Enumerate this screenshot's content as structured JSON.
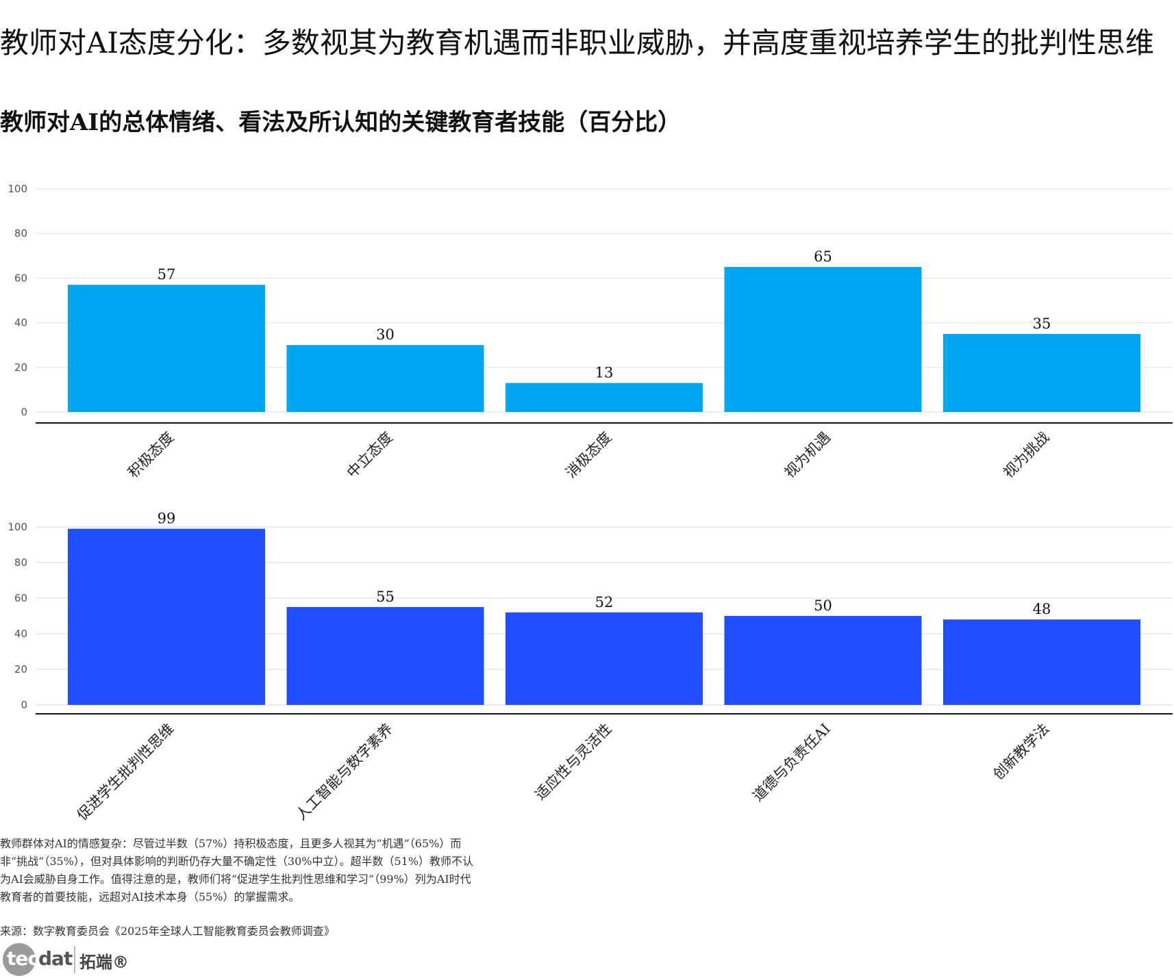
{
  "title": "教师对AI态度分化：多数视其为教育机遇而非职业威胁，并高度重视培养学生的批判性思维",
  "subtitle": "教师对AI的总体情绪、看法及所认知的关键教育者技能（百分比）",
  "note": "教师群体对AI的情感复杂：尽管过半数（57%）持积极态度，且更多人视其为“机遇”（65%）而非“挑战”（35%），但对具体影响的判断仍存大量不确定性（30%中立）。超半数（51%）教师不认为AI会威胁自身工作。值得注意的是，教师们将“促进学生批判性思维和学习”（99%）列为AI时代教育者的首要技能，远超对AI技术本身（55%）的掌握需求。",
  "source": "来源：数字教育委员会《2025年全球人工智能教育委员会教师调查》",
  "logo": {
    "text_a": "tec",
    "text_b": "dat",
    "cn": "拓端®"
  },
  "chart_data": [
    {
      "type": "bar",
      "categories": [
        "积极态度",
        "中立态度",
        "消极态度",
        "视为机遇",
        "视为挑战"
      ],
      "values": [
        57,
        30,
        13,
        65,
        35
      ],
      "ylim": [
        0,
        100
      ],
      "yticks": [
        0,
        20,
        40,
        60,
        80,
        100
      ],
      "grid": true,
      "color": "#00A6F0"
    },
    {
      "type": "bar",
      "categories": [
        "促进学生批判性思维",
        "人工智能与数字素养",
        "适应性与灵活性",
        "道德与负责任AI",
        "创新教学法"
      ],
      "values": [
        99,
        55,
        52,
        50,
        48
      ],
      "ylim": [
        0,
        100
      ],
      "yticks": [
        0,
        20,
        40,
        60,
        80,
        100
      ],
      "grid": true,
      "color": "#1F4FFF"
    }
  ]
}
